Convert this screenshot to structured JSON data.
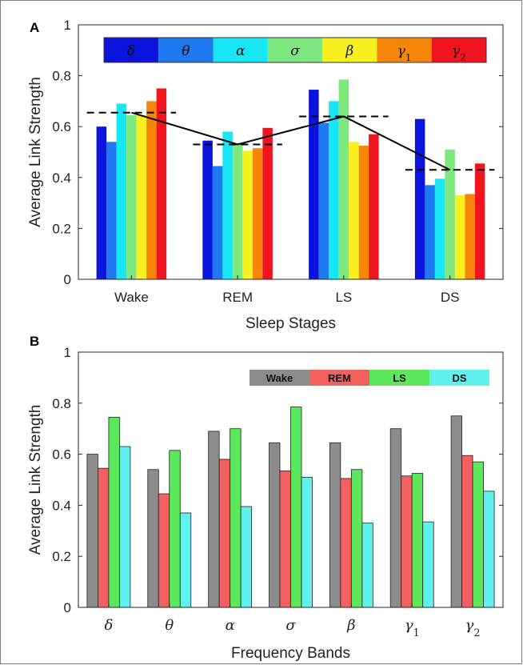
{
  "chart_data": [
    {
      "panel": "A",
      "type": "bar",
      "xlabel": "Sleep Stages",
      "ylabel": "Average Link Strength",
      "ylim": [
        0,
        1
      ],
      "yticks": [
        "0",
        "0.2",
        "0.4",
        "0.6",
        "0.8",
        "1"
      ],
      "categories": [
        "Wake",
        "REM",
        "LS",
        "DS"
      ],
      "legend_position": "top",
      "series": [
        {
          "name": "δ",
          "color": "#0a14dc",
          "values": [
            0.6,
            0.545,
            0.745,
            0.63
          ]
        },
        {
          "name": "θ",
          "color": "#1e78f0",
          "values": [
            0.54,
            0.445,
            0.615,
            0.37
          ]
        },
        {
          "name": "α",
          "color": "#19e6f5",
          "values": [
            0.69,
            0.58,
            0.7,
            0.395
          ]
        },
        {
          "name": "σ",
          "color": "#7ee87e",
          "values": [
            0.645,
            0.535,
            0.785,
            0.51
          ]
        },
        {
          "name": "β",
          "color": "#f8f020",
          "values": [
            0.645,
            0.505,
            0.54,
            0.33
          ]
        },
        {
          "name": "γ1",
          "color": "#f5860a",
          "values": [
            0.7,
            0.515,
            0.525,
            0.335
          ]
        },
        {
          "name": "γ2",
          "color": "#f0141e",
          "values": [
            0.75,
            0.595,
            0.57,
            0.455
          ]
        }
      ],
      "mean_line": {
        "values": [
          0.655,
          0.53,
          0.64,
          0.43
        ],
        "color": "#000000"
      }
    },
    {
      "panel": "B",
      "type": "bar",
      "xlabel": "Frequency Bands",
      "ylabel": "Average Link Strength",
      "ylim": [
        0,
        1
      ],
      "yticks": [
        "0",
        "0.2",
        "0.4",
        "0.6",
        "0.8",
        "1"
      ],
      "categories": [
        "δ",
        "θ",
        "α",
        "σ",
        "β",
        "γ1",
        "γ2"
      ],
      "legend_position": "top-right",
      "series": [
        {
          "name": "Wake",
          "color": "#8c8c8c",
          "values": [
            0.6,
            0.54,
            0.69,
            0.645,
            0.645,
            0.7,
            0.75
          ]
        },
        {
          "name": "REM",
          "color": "#f26060",
          "values": [
            0.545,
            0.445,
            0.58,
            0.535,
            0.505,
            0.515,
            0.595
          ]
        },
        {
          "name": "LS",
          "color": "#5ce85c",
          "values": [
            0.745,
            0.615,
            0.7,
            0.785,
            0.54,
            0.525,
            0.57
          ]
        },
        {
          "name": "DS",
          "color": "#5ff0f0",
          "values": [
            0.63,
            0.37,
            0.395,
            0.51,
            0.33,
            0.335,
            0.455
          ]
        }
      ]
    }
  ]
}
